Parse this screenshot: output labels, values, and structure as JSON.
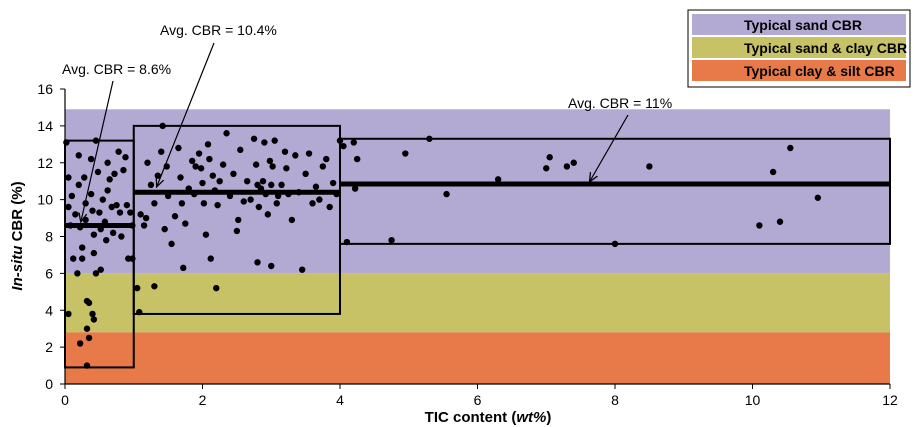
{
  "chart_data": {
    "type": "scatter",
    "xlabel_parts": [
      "TIC content (",
      "wt%",
      ")"
    ],
    "ylabel_parts": [
      "In-situ",
      " CBR (%)"
    ],
    "xlim": [
      0,
      12
    ],
    "ylim": [
      0,
      16
    ],
    "xticks": [
      0,
      2,
      4,
      6,
      8,
      10,
      12
    ],
    "yticks": [
      0,
      2,
      4,
      6,
      8,
      10,
      12,
      14,
      16
    ],
    "grid": false,
    "legend_position": "top-right",
    "bands": [
      {
        "name": "Typical sand CBR",
        "y0": 6,
        "y1": 14.9,
        "color": "#b3aad4"
      },
      {
        "name": "Typical sand & clay CBR",
        "y0": 2.8,
        "y1": 6,
        "color": "#c6c265"
      },
      {
        "name": "Typical clay & silt CBR",
        "y0": 0,
        "y1": 2.8,
        "color": "#e77a48"
      }
    ],
    "boxes": [
      {
        "x0": 0,
        "x1": 1,
        "y0": 0.9,
        "y1": 13.2,
        "avg": 8.6,
        "label": "Avg. CBR = 8.6%"
      },
      {
        "x0": 1,
        "x1": 4,
        "y0": 3.8,
        "y1": 14.0,
        "avg": 10.4,
        "label": "Avg. CBR = 10.4%"
      },
      {
        "x0": 4,
        "x1": 12,
        "y0": 7.6,
        "y1": 13.3,
        "avg": 10.85,
        "label": "Avg. CBR = 11%"
      }
    ],
    "points": [
      [
        0.02,
        13.1
      ],
      [
        0.05,
        11.2
      ],
      [
        0.05,
        9.6
      ],
      [
        0.08,
        8.6
      ],
      [
        0.1,
        10.2
      ],
      [
        0.12,
        6.8
      ],
      [
        0.05,
        3.8
      ],
      [
        0.15,
        9.2
      ],
      [
        0.18,
        6.0
      ],
      [
        0.2,
        12.4
      ],
      [
        0.2,
        10.8
      ],
      [
        0.22,
        8.5
      ],
      [
        0.25,
        7.4
      ],
      [
        0.25,
        6.8
      ],
      [
        0.22,
        2.2
      ],
      [
        0.28,
        11.2
      ],
      [
        0.3,
        9.8
      ],
      [
        0.3,
        8.9
      ],
      [
        0.32,
        4.5
      ],
      [
        0.35,
        4.4
      ],
      [
        0.32,
        3.0
      ],
      [
        0.35,
        2.5
      ],
      [
        0.32,
        1.0
      ],
      [
        0.38,
        12.2
      ],
      [
        0.38,
        10.3
      ],
      [
        0.4,
        9.4
      ],
      [
        0.42,
        8.1
      ],
      [
        0.42,
        7.1
      ],
      [
        0.4,
        3.8
      ],
      [
        0.42,
        3.5
      ],
      [
        0.45,
        6.0
      ],
      [
        0.45,
        13.2
      ],
      [
        0.48,
        11.5
      ],
      [
        0.5,
        9.3
      ],
      [
        0.52,
        8.4
      ],
      [
        0.52,
        6.2
      ],
      [
        0.55,
        10.0
      ],
      [
        0.58,
        8.8
      ],
      [
        0.6,
        7.8
      ],
      [
        0.62,
        12.0
      ],
      [
        0.62,
        10.5
      ],
      [
        0.65,
        11.1
      ],
      [
        0.68,
        9.6
      ],
      [
        0.7,
        8.2
      ],
      [
        0.72,
        11.4
      ],
      [
        0.75,
        9.7
      ],
      [
        0.78,
        12.6
      ],
      [
        0.8,
        9.3
      ],
      [
        0.82,
        8.0
      ],
      [
        0.85,
        11.6
      ],
      [
        0.88,
        12.3
      ],
      [
        0.9,
        9.7
      ],
      [
        0.92,
        6.8
      ],
      [
        0.95,
        9.3
      ],
      [
        0.98,
        8.6
      ],
      [
        0.98,
        6.8
      ],
      [
        1.05,
        5.2
      ],
      [
        1.08,
        3.9
      ],
      [
        1.1,
        9.2
      ],
      [
        1.15,
        8.6
      ],
      [
        1.18,
        9.0
      ],
      [
        1.2,
        12.0
      ],
      [
        1.25,
        10.8
      ],
      [
        1.3,
        9.8
      ],
      [
        1.3,
        5.3
      ],
      [
        1.35,
        11.3
      ],
      [
        1.4,
        12.6
      ],
      [
        1.42,
        14.0
      ],
      [
        1.45,
        8.4
      ],
      [
        1.48,
        11.8
      ],
      [
        1.5,
        10.2
      ],
      [
        1.55,
        7.6
      ],
      [
        1.6,
        9.1
      ],
      [
        1.65,
        12.8
      ],
      [
        1.68,
        11.2
      ],
      [
        1.7,
        9.8
      ],
      [
        1.72,
        6.3
      ],
      [
        1.75,
        8.7
      ],
      [
        1.8,
        10.6
      ],
      [
        1.85,
        12.1
      ],
      [
        1.88,
        10.3
      ],
      [
        1.9,
        11.8
      ],
      [
        1.95,
        12.5
      ],
      [
        1.98,
        11.7
      ],
      [
        2.0,
        10.9
      ],
      [
        2.02,
        9.8
      ],
      [
        2.05,
        8.1
      ],
      [
        2.08,
        13.0
      ],
      [
        2.1,
        12.2
      ],
      [
        2.12,
        6.8
      ],
      [
        2.15,
        11.3
      ],
      [
        2.18,
        10.5
      ],
      [
        2.2,
        5.2
      ],
      [
        2.22,
        9.7
      ],
      [
        2.25,
        11.0
      ],
      [
        2.3,
        11.9
      ],
      [
        2.35,
        13.6
      ],
      [
        2.4,
        10.2
      ],
      [
        2.45,
        11.4
      ],
      [
        2.5,
        8.3
      ],
      [
        2.52,
        8.9
      ],
      [
        2.55,
        12.7
      ],
      [
        2.6,
        9.9
      ],
      [
        2.65,
        11.0
      ],
      [
        2.7,
        10.0
      ],
      [
        2.75,
        13.3
      ],
      [
        2.78,
        11.9
      ],
      [
        2.8,
        10.8
      ],
      [
        2.82,
        9.6
      ],
      [
        2.85,
        10.6
      ],
      [
        2.88,
        11.0
      ],
      [
        2.9,
        13.1
      ],
      [
        2.92,
        10.3
      ],
      [
        2.95,
        9.2
      ],
      [
        2.98,
        12.1
      ],
      [
        3.0,
        10.8
      ],
      [
        3.02,
        11.8
      ],
      [
        3.05,
        13.2
      ],
      [
        3.08,
        9.8
      ],
      [
        3.1,
        10.2
      ],
      [
        3.15,
        10.8
      ],
      [
        3.2,
        12.6
      ],
      [
        3.22,
        11.7
      ],
      [
        3.25,
        10.3
      ],
      [
        3.3,
        8.9
      ],
      [
        3.35,
        12.4
      ],
      [
        3.4,
        10.4
      ],
      [
        3.45,
        6.2
      ],
      [
        3.5,
        11.4
      ],
      [
        3.55,
        12.5
      ],
      [
        3.6,
        9.8
      ],
      [
        3.65,
        10.7
      ],
      [
        3.7,
        10.0
      ],
      [
        3.75,
        11.8
      ],
      [
        3.8,
        12.2
      ],
      [
        3.85,
        9.6
      ],
      [
        3.9,
        10.9
      ],
      [
        3.95,
        10.3
      ],
      [
        2.8,
        6.6
      ],
      [
        3.0,
        6.4
      ],
      [
        4.0,
        13.2
      ],
      [
        4.05,
        12.9
      ],
      [
        4.1,
        7.7
      ],
      [
        4.2,
        13.1
      ],
      [
        4.22,
        10.6
      ],
      [
        4.25,
        12.2
      ],
      [
        4.75,
        7.8
      ],
      [
        4.95,
        12.5
      ],
      [
        5.3,
        13.3
      ],
      [
        5.55,
        10.3
      ],
      [
        6.3,
        11.1
      ],
      [
        7.0,
        11.7
      ],
      [
        7.05,
        12.3
      ],
      [
        7.3,
        11.8
      ],
      [
        7.4,
        12.0
      ],
      [
        8.0,
        7.6
      ],
      [
        8.5,
        11.8
      ],
      [
        10.1,
        8.6
      ],
      [
        10.3,
        11.5
      ],
      [
        10.4,
        8.8
      ],
      [
        10.55,
        12.8
      ],
      [
        10.95,
        10.1
      ]
    ]
  }
}
